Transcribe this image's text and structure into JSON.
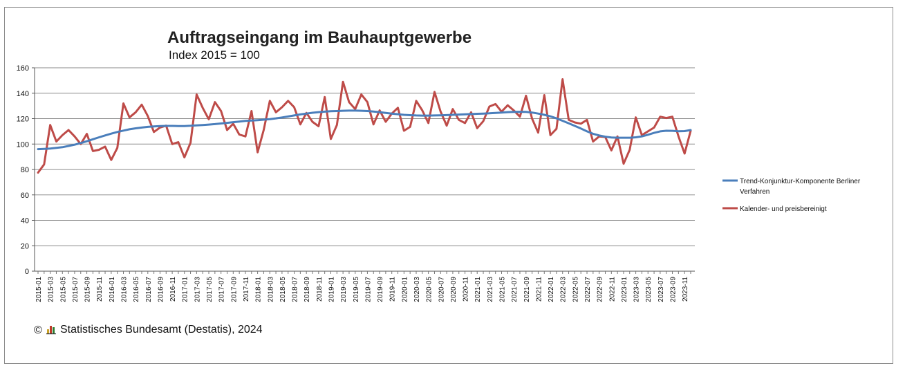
{
  "chart_data": {
    "type": "line",
    "title": "Auftragseingang im Bauhauptgewerbe",
    "subtitle": "Index 2015 = 100",
    "ylim": [
      0,
      160
    ],
    "yticks": [
      0,
      20,
      40,
      60,
      80,
      100,
      120,
      140,
      160
    ],
    "grid": true,
    "legend_position": "right",
    "x_label_every": 2,
    "x": [
      "2015-01",
      "2015-02",
      "2015-03",
      "2015-04",
      "2015-05",
      "2015-06",
      "2015-07",
      "2015-08",
      "2015-09",
      "2015-10",
      "2015-11",
      "2015-12",
      "2016-01",
      "2016-02",
      "2016-03",
      "2016-04",
      "2016-05",
      "2016-06",
      "2016-07",
      "2016-08",
      "2016-09",
      "2016-10",
      "2016-11",
      "2016-12",
      "2017-01",
      "2017-02",
      "2017-03",
      "2017-04",
      "2017-05",
      "2017-06",
      "2017-07",
      "2017-08",
      "2017-09",
      "2017-10",
      "2017-11",
      "2017-12",
      "2018-01",
      "2018-02",
      "2018-03",
      "2018-04",
      "2018-05",
      "2018-06",
      "2018-07",
      "2018-08",
      "2018-09",
      "2018-10",
      "2018-11",
      "2018-12",
      "2019-01",
      "2019-02",
      "2019-03",
      "2019-04",
      "2019-05",
      "2019-06",
      "2019-07",
      "2019-08",
      "2019-09",
      "2019-10",
      "2019-11",
      "2019-12",
      "2020-01",
      "2020-02",
      "2020-03",
      "2020-04",
      "2020-05",
      "2020-06",
      "2020-07",
      "2020-08",
      "2020-09",
      "2020-10",
      "2020-11",
      "2020-12",
      "2021-01",
      "2021-02",
      "2021-03",
      "2021-04",
      "2021-05",
      "2021-06",
      "2021-07",
      "2021-08",
      "2021-09",
      "2021-10",
      "2021-11",
      "2021-12",
      "2022-01",
      "2022-02",
      "2022-03",
      "2022-04",
      "2022-05",
      "2022-06",
      "2022-07",
      "2022-08",
      "2022-09",
      "2022-10",
      "2022-11",
      "2022-12",
      "2023-01",
      "2023-02",
      "2023-03",
      "2023-04",
      "2023-05",
      "2023-06",
      "2023-07",
      "2023-08",
      "2023-09",
      "2023-10",
      "2023-11",
      "2023-12"
    ],
    "series": [
      {
        "name": "Trend-Konjunktur-Komponente Berliner Verfahren",
        "color": "#4a7ebb",
        "values": [
          96,
          96.2,
          96.5,
          97,
          97.5,
          98.5,
          99.5,
          100.8,
          102.2,
          103.8,
          105.3,
          106.8,
          108.2,
          109.5,
          110.6,
          111.6,
          112.4,
          113,
          113.5,
          113.9,
          114.1,
          114.3,
          114.3,
          114.2,
          114.2,
          114.4,
          114.7,
          115,
          115.3,
          115.7,
          116.2,
          116.7,
          117.2,
          117.7,
          118.2,
          118.5,
          118.8,
          119.2,
          119.6,
          120.2,
          120.9,
          121.7,
          122.5,
          123.3,
          124,
          124.6,
          125.1,
          125.5,
          125.8,
          126,
          126.2,
          126.3,
          126.3,
          126.2,
          126,
          125.6,
          125.1,
          124.5,
          124,
          123.5,
          123,
          122.7,
          122.5,
          122.4,
          122.4,
          122.5,
          122.6,
          122.8,
          123,
          123.2,
          123.4,
          123.6,
          123.8,
          124,
          124.2,
          124.5,
          124.8,
          125.1,
          125.3,
          125.4,
          125.3,
          124.8,
          124,
          123,
          121.8,
          120.2,
          118.3,
          116.3,
          114.3,
          112.2,
          110,
          108.1,
          106.8,
          105.8,
          105.2,
          105,
          105,
          105,
          105.3,
          106,
          107.3,
          108.8,
          110,
          110.5,
          110.4,
          110.1,
          110.2,
          111
        ]
      },
      {
        "name": "Kalender- und preisbereinigt",
        "color": "#be4b48",
        "values": [
          77.5,
          84,
          115,
          102,
          107,
          111,
          106,
          100,
          108,
          94.5,
          95.5,
          98,
          87.5,
          97,
          132,
          121,
          125,
          131,
          122,
          109.5,
          113,
          114.5,
          100,
          101.5,
          89.5,
          101,
          139,
          128.5,
          119.5,
          133,
          126,
          111,
          116,
          107.5,
          106,
          126,
          93.5,
          111,
          134,
          125,
          129,
          134,
          129,
          115.5,
          124.5,
          117.5,
          114,
          137,
          104,
          115,
          149,
          133,
          127.5,
          139,
          133,
          115.5,
          126.5,
          117.5,
          124,
          128.5,
          110.5,
          113.5,
          134,
          126.5,
          116.5,
          141,
          125.5,
          114.5,
          127.5,
          119,
          116.5,
          125,
          112.5,
          118,
          129.5,
          131.5,
          125.5,
          130.5,
          126.5,
          121.5,
          138,
          120,
          109,
          138.5,
          107,
          112,
          151,
          119,
          117,
          116,
          119,
          102,
          106,
          105.5,
          95,
          106,
          84.5,
          95.5,
          121,
          107,
          110,
          113,
          121.5,
          120.5,
          121.5,
          106,
          92.5,
          110.5
        ]
      }
    ]
  },
  "source": {
    "copyright_symbol": "©",
    "text": "Statistisches Bundesamt (Destatis), 2024",
    "logo_colors": [
      "#c9a227",
      "#c0392b",
      "#2e7d32"
    ]
  }
}
